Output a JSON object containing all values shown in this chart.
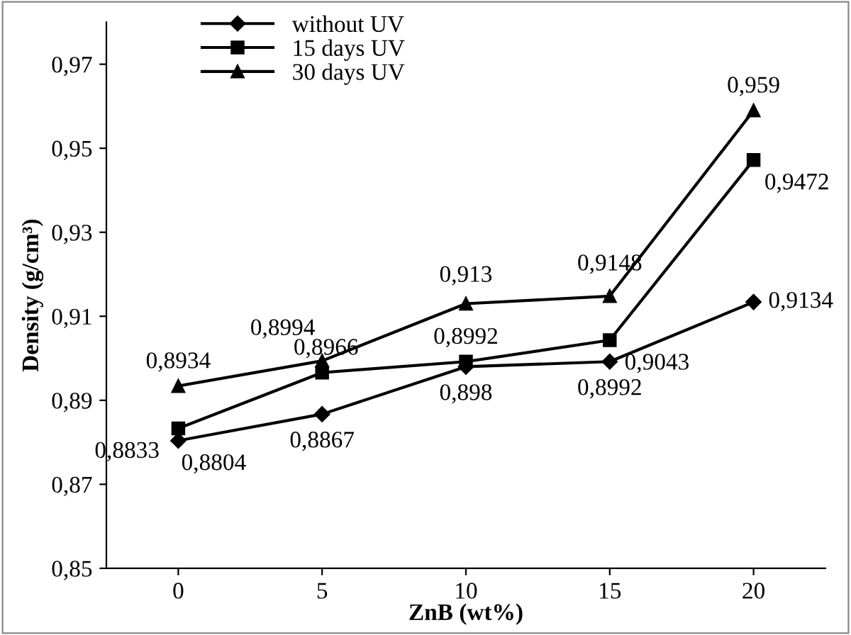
{
  "chart_data": {
    "type": "line",
    "xlabel": "ZnB (wt%)",
    "ylabel": "Density (g/cm³)",
    "categories": [
      "0",
      "5",
      "10",
      "15",
      "20"
    ],
    "series": [
      {
        "name": "without UV",
        "color": "#000000",
        "marker": "diamond",
        "values": [
          0.8804,
          0.8867,
          0.898,
          0.8992,
          0.9134
        ],
        "value_labels": [
          "0,8804",
          "0,8867",
          "0,898",
          "0,8992",
          "0,9134"
        ]
      },
      {
        "name": "15 days UV",
        "color": "#000000",
        "marker": "square",
        "values": [
          0.8833,
          0.8966,
          0.8992,
          0.9043,
          0.9472
        ],
        "value_labels": [
          "0,8833",
          "0,8966",
          "0,8992",
          "0,9043",
          "0,9472"
        ]
      },
      {
        "name": "30 days UV",
        "color": "#000000",
        "marker": "triangle",
        "values": [
          0.8934,
          0.8994,
          0.913,
          0.9148,
          0.959
        ],
        "value_labels": [
          "0,8934",
          "0,8994",
          "0,913",
          "0,9148",
          "0,959"
        ]
      }
    ],
    "ylim": [
      0.85,
      0.98
    ],
    "yticks": [
      {
        "value": 0.85,
        "label": "0,85"
      },
      {
        "value": 0.87,
        "label": "0,87"
      },
      {
        "value": 0.89,
        "label": "0,89"
      },
      {
        "value": 0.91,
        "label": "0,91"
      },
      {
        "value": 0.93,
        "label": "0,93"
      },
      {
        "value": 0.95,
        "label": "0,95"
      },
      {
        "value": 0.97,
        "label": "0,97"
      }
    ],
    "legend": "top left",
    "grid": false
  }
}
